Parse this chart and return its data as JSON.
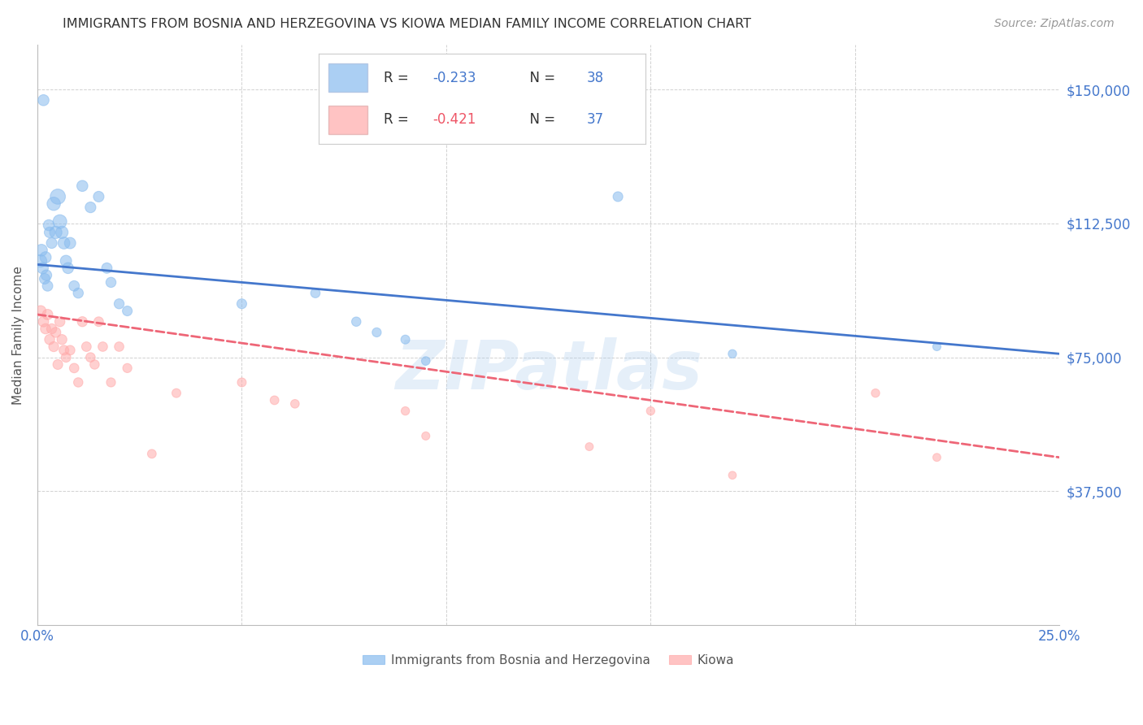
{
  "title": "IMMIGRANTS FROM BOSNIA AND HERZEGOVINA VS KIOWA MEDIAN FAMILY INCOME CORRELATION CHART",
  "source": "Source: ZipAtlas.com",
  "ylabel": "Median Family Income",
  "ytick_labels": [
    "$150,000",
    "$112,500",
    "$75,000",
    "$37,500"
  ],
  "ytick_values": [
    150000,
    112500,
    75000,
    37500
  ],
  "ymin": 0,
  "ymax": 162500,
  "xmin": 0.0,
  "xmax": 0.25,
  "xtick_values": [
    0.0,
    0.05,
    0.1,
    0.15,
    0.2,
    0.25
  ],
  "xtick_labels": [
    "0.0%",
    "",
    "",
    "",
    "",
    "25.0%"
  ],
  "legend_r1": "R = ",
  "legend_v1": "-0.233",
  "legend_n1": "   N = ",
  "legend_nv1": "38",
  "legend_r2": "R = ",
  "legend_v2": "-0.421",
  "legend_n2": "   N = ",
  "legend_nv2": "37",
  "legend_label1": "Immigrants from Bosnia and Herzegovina",
  "legend_label2": "Kiowa",
  "blue_color": "#88BBEE",
  "pink_color": "#FFAAAA",
  "blue_line_color": "#4477CC",
  "pink_line_color": "#EE6677",
  "blue_edge_color": "#88BBEE",
  "pink_edge_color": "#FFAAAA",
  "watermark": "ZIPatlas",
  "blue_x": [
    0.0008,
    0.001,
    0.0013,
    0.0015,
    0.0018,
    0.002,
    0.0022,
    0.0025,
    0.0028,
    0.003,
    0.0035,
    0.004,
    0.0045,
    0.005,
    0.0055,
    0.006,
    0.0065,
    0.007,
    0.0075,
    0.008,
    0.009,
    0.01,
    0.011,
    0.013,
    0.015,
    0.017,
    0.018,
    0.02,
    0.022,
    0.05,
    0.068,
    0.078,
    0.083,
    0.09,
    0.095,
    0.142,
    0.17,
    0.22
  ],
  "blue_y": [
    102000,
    105000,
    100000,
    147000,
    97000,
    103000,
    98000,
    95000,
    112000,
    110000,
    107000,
    118000,
    110000,
    120000,
    113000,
    110000,
    107000,
    102000,
    100000,
    107000,
    95000,
    93000,
    123000,
    117000,
    120000,
    100000,
    96000,
    90000,
    88000,
    90000,
    93000,
    85000,
    82000,
    80000,
    74000,
    120000,
    76000,
    78000
  ],
  "blue_s": [
    120,
    110,
    100,
    95,
    88,
    100,
    90,
    85,
    95,
    90,
    88,
    140,
    120,
    180,
    150,
    120,
    110,
    100,
    95,
    100,
    85,
    80,
    95,
    90,
    88,
    85,
    80,
    78,
    75,
    75,
    70,
    68,
    65,
    62,
    58,
    75,
    55,
    52
  ],
  "pink_x": [
    0.0008,
    0.0015,
    0.002,
    0.0025,
    0.003,
    0.0035,
    0.004,
    0.0045,
    0.005,
    0.0055,
    0.006,
    0.0065,
    0.007,
    0.008,
    0.009,
    0.01,
    0.011,
    0.012,
    0.013,
    0.014,
    0.015,
    0.016,
    0.018,
    0.02,
    0.022,
    0.028,
    0.034,
    0.05,
    0.058,
    0.063,
    0.09,
    0.095,
    0.135,
    0.15,
    0.17,
    0.205,
    0.22
  ],
  "pink_y": [
    88000,
    85000,
    83000,
    87000,
    80000,
    83000,
    78000,
    82000,
    73000,
    85000,
    80000,
    77000,
    75000,
    77000,
    72000,
    68000,
    85000,
    78000,
    75000,
    73000,
    85000,
    78000,
    68000,
    78000,
    72000,
    48000,
    65000,
    68000,
    63000,
    62000,
    60000,
    53000,
    50000,
    60000,
    42000,
    65000,
    47000
  ],
  "pink_s": [
    90,
    85,
    82,
    85,
    80,
    80,
    78,
    80,
    75,
    80,
    78,
    75,
    73,
    73,
    70,
    68,
    78,
    72,
    70,
    68,
    72,
    70,
    65,
    70,
    65,
    60,
    62,
    62,
    60,
    58,
    55,
    52,
    50,
    55,
    48,
    55,
    50
  ],
  "blue_trend_x": [
    0.0,
    0.25
  ],
  "blue_trend_y": [
    101000,
    76000
  ],
  "pink_trend_x": [
    0.0,
    0.25
  ],
  "pink_trend_y": [
    87000,
    47000
  ]
}
